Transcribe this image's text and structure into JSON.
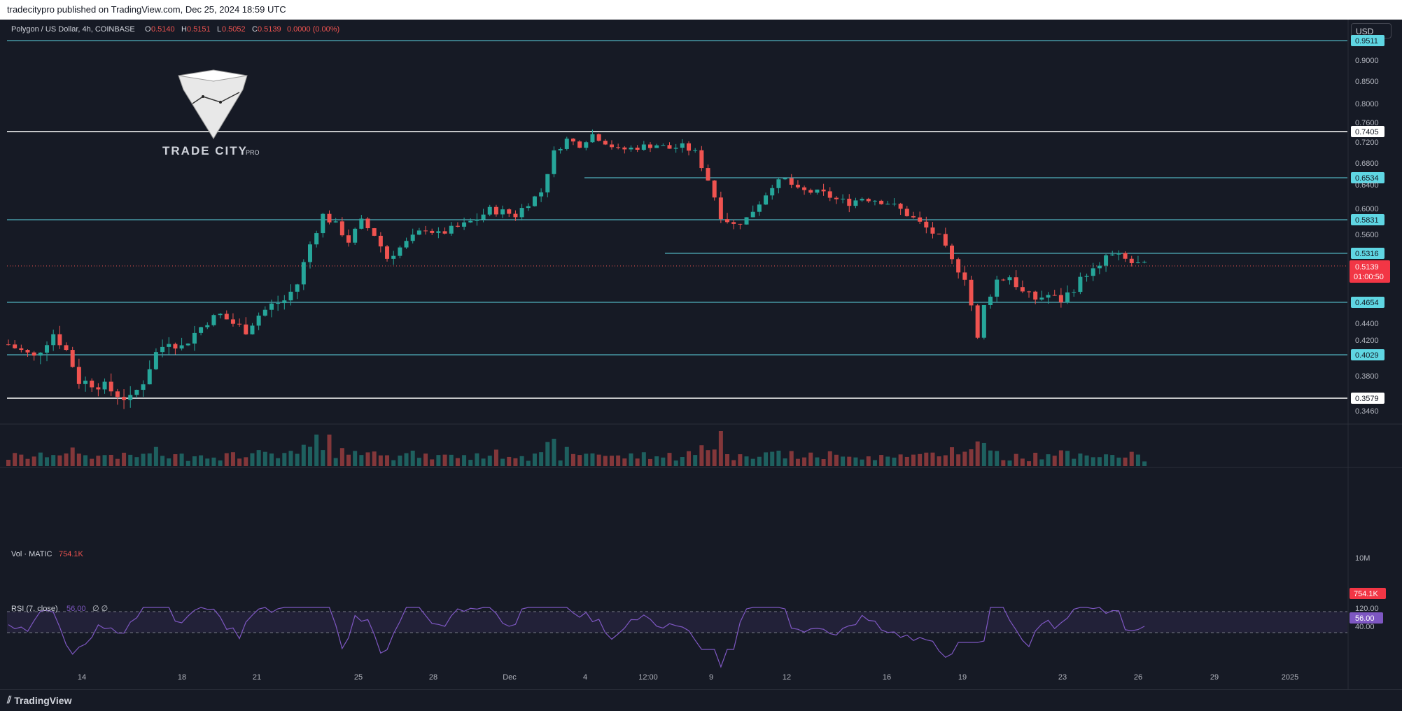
{
  "header": {
    "published": "tradecitypro published on TradingView.com, Dec 25, 2024 18:59 UTC"
  },
  "symbol": {
    "name": "Polygon / US Dollar, 4h, COINBASE",
    "o_label": "O",
    "o_value": "0.5140",
    "h_label": "H",
    "h_value": "0.5151",
    "l_label": "L",
    "l_value": "0.5052",
    "c_label": "C",
    "c_value": "0.5139",
    "change": "0.0000 (0.00%)"
  },
  "currency_button": "USD",
  "logo": {
    "name": "TRADE CITY",
    "suffix": "PRO"
  },
  "volume": {
    "label": "Vol · MATIC",
    "value": "754.1K",
    "axis_label": "10M",
    "last_tag": "754.1K"
  },
  "rsi": {
    "label": "RSI (7, close)",
    "value": "56.00",
    "extra": "∅  ∅",
    "axis_120": "120.00",
    "axis_40": "40.00",
    "last_tag": "56.00"
  },
  "footer": {
    "brand": "TradingView"
  },
  "price_tag": {
    "value": "0.5139",
    "countdown": "01:00:50"
  },
  "colors": {
    "up": "#26a69a",
    "down": "#ef5350",
    "bg": "#161a25",
    "cyan_level": "#5fd6e3",
    "white_level": "#ffffff",
    "rsi": "#7e57c2"
  },
  "chart_data": {
    "type": "candlestick",
    "title": "Polygon / US Dollar, 4h, COINBASE",
    "y_ticks": [
      "0.9000",
      "0.8500",
      "0.8000",
      "0.7600",
      "0.7200",
      "0.6800",
      "0.6400",
      "0.6000",
      "0.5600",
      "0.4400",
      "0.4200",
      "0.3800",
      "0.3460"
    ],
    "x_ticks": [
      "14",
      "18",
      "21",
      "25",
      "28",
      "Dec",
      "4",
      "12:00",
      "9",
      "12",
      "16",
      "19",
      "23",
      "26",
      "29",
      "2025"
    ],
    "levels": [
      {
        "price": 0.9511,
        "label": "0.9511",
        "style": "cyan"
      },
      {
        "price": 0.7405,
        "label": "0.7405",
        "style": "white"
      },
      {
        "price": 0.6534,
        "label": "0.6534",
        "style": "cyan"
      },
      {
        "price": 0.5831,
        "label": "0.5831",
        "style": "cyan"
      },
      {
        "price": 0.5316,
        "label": "0.5316",
        "style": "cyan"
      },
      {
        "price": 0.4654,
        "label": "0.4654",
        "style": "cyan"
      },
      {
        "price": 0.4029,
        "label": "0.4029",
        "style": "cyan"
      },
      {
        "price": 0.3579,
        "label": "0.3579",
        "style": "white"
      }
    ],
    "last_price": 0.5139,
    "close_path": [
      [
        0,
        0.415
      ],
      [
        4,
        0.4
      ],
      [
        7,
        0.428
      ],
      [
        9,
        0.408
      ],
      [
        11,
        0.375
      ],
      [
        14,
        0.372
      ],
      [
        17,
        0.362
      ],
      [
        19,
        0.356
      ],
      [
        21,
        0.375
      ],
      [
        23,
        0.405
      ],
      [
        25,
        0.42
      ],
      [
        27,
        0.412
      ],
      [
        29,
        0.428
      ],
      [
        31,
        0.443
      ],
      [
        33,
        0.45
      ],
      [
        35,
        0.44
      ],
      [
        37,
        0.432
      ],
      [
        39,
        0.45
      ],
      [
        41,
        0.462
      ],
      [
        43,
        0.468
      ],
      [
        45,
        0.49
      ],
      [
        47,
        0.545
      ],
      [
        49,
        0.59
      ],
      [
        51,
        0.575
      ],
      [
        53,
        0.55
      ],
      [
        55,
        0.58
      ],
      [
        57,
        0.56
      ],
      [
        59,
        0.525
      ],
      [
        61,
        0.54
      ],
      [
        63,
        0.555
      ],
      [
        65,
        0.57
      ],
      [
        67,
        0.56
      ],
      [
        69,
        0.568
      ],
      [
        71,
        0.575
      ],
      [
        73,
        0.585
      ],
      [
        75,
        0.598
      ],
      [
        77,
        0.595
      ],
      [
        79,
        0.59
      ],
      [
        81,
        0.61
      ],
      [
        83,
        0.628
      ],
      [
        85,
        0.7
      ],
      [
        87,
        0.725
      ],
      [
        89,
        0.715
      ],
      [
        91,
        0.735
      ],
      [
        93,
        0.72
      ],
      [
        95,
        0.705
      ],
      [
        97,
        0.708
      ],
      [
        99,
        0.712
      ],
      [
        101,
        0.715
      ],
      [
        103,
        0.708
      ],
      [
        105,
        0.712
      ],
      [
        107,
        0.7
      ],
      [
        109,
        0.65
      ],
      [
        111,
        0.59
      ],
      [
        113,
        0.575
      ],
      [
        115,
        0.585
      ],
      [
        117,
        0.61
      ],
      [
        119,
        0.64
      ],
      [
        121,
        0.65
      ],
      [
        123,
        0.63
      ],
      [
        125,
        0.628
      ],
      [
        127,
        0.625
      ],
      [
        129,
        0.615
      ],
      [
        131,
        0.61
      ],
      [
        133,
        0.618
      ],
      [
        135,
        0.615
      ],
      [
        137,
        0.61
      ],
      [
        139,
        0.598
      ],
      [
        141,
        0.585
      ],
      [
        143,
        0.57
      ],
      [
        145,
        0.555
      ],
      [
        147,
        0.52
      ],
      [
        149,
        0.5
      ],
      [
        150,
        0.462
      ],
      [
        151,
        0.42
      ],
      [
        152,
        0.46
      ],
      [
        154,
        0.495
      ],
      [
        156,
        0.5
      ],
      [
        158,
        0.478
      ],
      [
        160,
        0.47
      ],
      [
        162,
        0.475
      ],
      [
        164,
        0.468
      ],
      [
        166,
        0.485
      ],
      [
        168,
        0.505
      ],
      [
        170,
        0.51
      ],
      [
        171,
        0.528
      ],
      [
        173,
        0.527
      ],
      [
        175,
        0.518
      ],
      [
        177,
        0.5139
      ]
    ],
    "candle_count": 178
  }
}
